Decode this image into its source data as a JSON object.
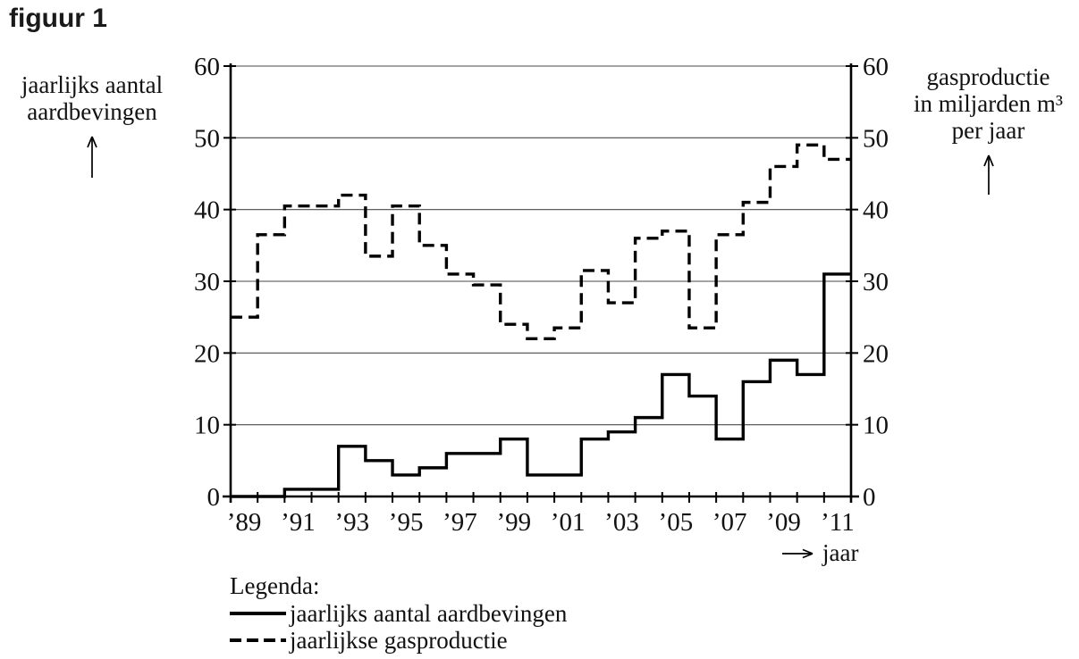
{
  "title": "figuur 1",
  "left_axis": {
    "title_lines": [
      "jaarlijks aantal",
      "aardbevingen"
    ]
  },
  "right_axis": {
    "title_lines": [
      "gasproductie",
      "in miljarden m³",
      "per jaar"
    ]
  },
  "x_axis": {
    "title": "jaar"
  },
  "legend": {
    "title": "Legenda:",
    "items": [
      {
        "label": "jaarlijks aantal aardbevingen",
        "style": "solid"
      },
      {
        "label": "jaarlijkse gasproductie",
        "style": "dashed"
      }
    ]
  },
  "colors": {
    "line": "#000000",
    "grid": "#4a4a4a",
    "text": "#111111",
    "background": "#ffffff"
  },
  "chart_data": {
    "type": "line",
    "subtype": "step-yearly",
    "title": "figuur 1",
    "grid": "horizontal",
    "legend_position": "below-left",
    "x_years": [
      1989,
      1990,
      1991,
      1992,
      1993,
      1994,
      1995,
      1996,
      1997,
      1998,
      1999,
      2000,
      2001,
      2002,
      2003,
      2004,
      2005,
      2006,
      2007,
      2008,
      2009,
      2010,
      2011
    ],
    "x_tick_labels": [
      "’89",
      "’91",
      "’93",
      "’95",
      "’97",
      "’99",
      "’01",
      "’03",
      "’05",
      "’07",
      "’09",
      "’11"
    ],
    "y_ticks": [
      0,
      10,
      20,
      30,
      40,
      50,
      60
    ],
    "y_left": {
      "label": "jaarlijks aantal aardbevingen",
      "range": [
        0,
        60
      ]
    },
    "y_right": {
      "label": "gasproductie in miljarden m³ per jaar",
      "range": [
        0,
        60
      ]
    },
    "series": [
      {
        "name": "jaarlijks aantal aardbevingen",
        "axis": "left",
        "line_style": "solid",
        "values": [
          0,
          0,
          1,
          1,
          7,
          5,
          3,
          4,
          6,
          6,
          8,
          3,
          3,
          8,
          9,
          11,
          17,
          14,
          8,
          16,
          19,
          17,
          31
        ]
      },
      {
        "name": "jaarlijkse gasproductie",
        "axis": "right",
        "line_style": "dashed",
        "values": [
          25,
          36.5,
          40.5,
          40.5,
          42,
          33.5,
          40.5,
          35,
          31,
          29.5,
          24,
          22,
          23.5,
          31.5,
          27,
          36,
          37,
          23.5,
          36.5,
          41,
          46,
          49,
          47
        ]
      }
    ]
  }
}
